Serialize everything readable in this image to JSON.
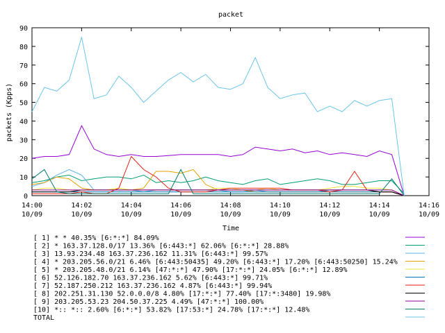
{
  "chart_data": {
    "type": "line",
    "title": "packet",
    "xlabel": "Time",
    "ylabel": "packets (Kpps)",
    "ylim": [
      0,
      90
    ],
    "yticks": [
      0,
      10,
      20,
      30,
      40,
      50,
      60,
      70,
      80,
      90
    ],
    "xlim": [
      "14:00",
      "14:16"
    ],
    "xticks": [
      {
        "time": "14:00",
        "date": "10/09"
      },
      {
        "time": "14:02",
        "date": "10/09"
      },
      {
        "time": "14:04",
        "date": "10/09"
      },
      {
        "time": "14:06",
        "date": "10/09"
      },
      {
        "time": "14:08",
        "date": "10/09"
      },
      {
        "time": "14:10",
        "date": "10/09"
      },
      {
        "time": "14:12",
        "date": "10/09"
      },
      {
        "time": "14:14",
        "date": "10/09"
      },
      {
        "time": "14:16",
        "date": "10/09"
      }
    ],
    "grid": false,
    "legend_position": "bottom",
    "x": [
      "14:00:00",
      "14:00:30",
      "14:01:00",
      "14:01:30",
      "14:02:00",
      "14:02:30",
      "14:03:00",
      "14:03:30",
      "14:04:00",
      "14:04:30",
      "14:05:00",
      "14:05:30",
      "14:06:00",
      "14:06:30",
      "14:07:00",
      "14:07:30",
      "14:08:00",
      "14:08:30",
      "14:09:00",
      "14:09:30",
      "14:10:00",
      "14:10:30",
      "14:11:00",
      "14:11:30",
      "14:12:00",
      "14:12:30",
      "14:13:00",
      "14:13:30",
      "14:14:00",
      "14:14:30",
      "14:15:00"
    ],
    "series": [
      {
        "name": "[ 1] * * 40.35%  [6:*:*] 84.09%",
        "color": "#9400d3",
        "values": [
          20,
          21,
          21,
          22,
          37.5,
          25,
          22,
          21,
          22,
          21,
          21,
          21.5,
          22,
          22,
          22,
          22,
          21,
          22,
          26,
          25,
          24,
          25,
          23,
          24,
          22,
          23,
          22,
          21,
          24,
          22,
          0
        ]
      },
      {
        "name": "[ 2] * 163.37.128.0/17 13.36%  [6:443:*] 62.06% [6:*:*] 28.88%",
        "color": "#009e73",
        "values": [
          7,
          8,
          10,
          11,
          8,
          9,
          10,
          10,
          9,
          11,
          7,
          8,
          7,
          8,
          10,
          8,
          7,
          6,
          8,
          9,
          6,
          7,
          8,
          9,
          8,
          6,
          6,
          7,
          8,
          8,
          1
        ]
      },
      {
        "name": "[ 3] 13.93.234.48 163.37.236.162 11.31%  [6:443:*] 99.57%",
        "color": "#56b4e9",
        "values": [
          5,
          7,
          11,
          14,
          11,
          3,
          3,
          3,
          3,
          2,
          3,
          3,
          3,
          3,
          3,
          3,
          2,
          2,
          3,
          2,
          2,
          2,
          2,
          2,
          3,
          3,
          3,
          3,
          3,
          3,
          0
        ]
      },
      {
        "name": "[ 4] * 203.205.56.0/21 6.46%  [6:443:50435] 49.20% [6:443:*] 17.20% [6:443:50250] 15.24%",
        "color": "#e69f00",
        "values": [
          6,
          7,
          10,
          9,
          4,
          3,
          3,
          4,
          3,
          4,
          13,
          13,
          12,
          14,
          6,
          3,
          3,
          3,
          2,
          2,
          2,
          2,
          2,
          2,
          2,
          2,
          2,
          2,
          2,
          2,
          0
        ]
      },
      {
        "name": "[ 5] * 203.205.48.0/21 6.14%  [47:*:*] 47.90% [17:*:*] 24.05% [6:*:*] 12.89%",
        "color": "#f0e442",
        "values": [
          3,
          4,
          4,
          3,
          3,
          3,
          3,
          4,
          3,
          3,
          3,
          3,
          3,
          3,
          3,
          4,
          4,
          3,
          3,
          4,
          3,
          3,
          3,
          3,
          4,
          5,
          5,
          4,
          4,
          3,
          0
        ]
      },
      {
        "name": "[ 6] 52.126.182.70 163.37.236.162 5.62%  [6:443:*] 99.71%",
        "color": "#0072b2",
        "values": [
          2,
          2,
          2,
          2,
          2,
          2,
          2,
          2,
          2,
          2,
          2,
          2,
          2,
          2,
          2,
          2,
          2,
          2,
          2,
          2,
          2,
          2,
          2,
          2,
          2,
          2,
          2,
          2,
          2,
          2,
          0
        ]
      },
      {
        "name": "[ 7] 52.187.250.212 163.37.236.162 4.87%  [6:443:*] 99.94%",
        "color": "#e51e10",
        "values": [
          1,
          1,
          1,
          1,
          2,
          1,
          1,
          4,
          21,
          14,
          10,
          4,
          2,
          2,
          2,
          3,
          4,
          4,
          4,
          4,
          4,
          3,
          3,
          3,
          2,
          3,
          13,
          3,
          2,
          2,
          0
        ]
      },
      {
        "name": "[ 8] 202.251.31.130 52.0.0.0/8 4.80%  [17:*:*] 77.40% [17:*:3480] 19.98%",
        "color": "#000000",
        "values": [
          2,
          2,
          2,
          2,
          3,
          3,
          3,
          3,
          3,
          3,
          3,
          3,
          3,
          3,
          3,
          3,
          3,
          3,
          3,
          3,
          3,
          3,
          3,
          3,
          3,
          3,
          3,
          3,
          2,
          2,
          0
        ]
      },
      {
        "name": "[ 9] 203.205.53.23 204.50.37.225 4.49%  [47:*:*] 100.00%",
        "color": "#8b008b",
        "values": [
          3,
          3,
          3,
          3,
          3,
          3,
          3,
          3,
          3,
          3,
          3,
          3,
          3,
          3,
          3,
          3,
          3,
          3,
          3,
          3,
          3,
          3,
          3,
          3,
          3,
          3,
          3,
          3,
          3,
          3,
          0
        ]
      },
      {
        "name": "[10] *:: *:: 2.60%  [6:*:*] 53.82% [17:53:*] 24.78% [17:*:*] 12.48%",
        "color": "#00796b",
        "values": [
          9,
          14,
          2,
          1,
          1,
          1,
          1,
          1,
          1,
          1,
          1,
          1,
          14,
          1,
          1,
          1,
          1,
          1,
          1,
          1,
          1,
          1,
          1,
          1,
          1,
          1,
          1,
          1,
          1,
          9,
          0
        ]
      },
      {
        "name": "TOTAL",
        "color": "#6cc5e8",
        "values": [
          45,
          58,
          56,
          62,
          85,
          52,
          54,
          64,
          58,
          50,
          56,
          62,
          66,
          61,
          65,
          58,
          57,
          60,
          74,
          58,
          52,
          54,
          55,
          45,
          48,
          45,
          51,
          48,
          51,
          52,
          0
        ]
      }
    ]
  }
}
